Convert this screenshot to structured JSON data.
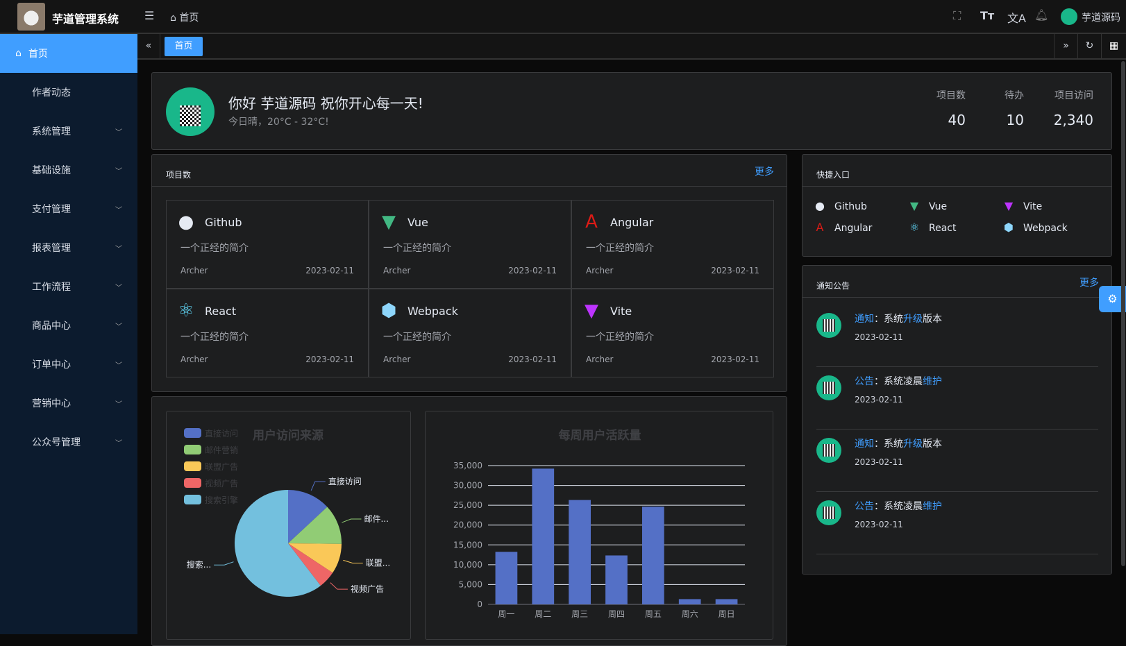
{
  "app": {
    "title": "芋道管理系统",
    "breadcrumb": "首页",
    "user": "芋道源码"
  },
  "header_icons": [
    "fullscreen-icon",
    "font-size-icon",
    "translate-icon",
    "bell-icon"
  ],
  "sidebar": {
    "items": [
      {
        "label": "首页",
        "active": true
      },
      {
        "label": "作者动态"
      },
      {
        "label": "系统管理",
        "expandable": true
      },
      {
        "label": "基础设施",
        "expandable": true
      },
      {
        "label": "支付管理",
        "expandable": true
      },
      {
        "label": "报表管理",
        "expandable": true
      },
      {
        "label": "工作流程",
        "expandable": true
      },
      {
        "label": "商品中心",
        "expandable": true
      },
      {
        "label": "订单中心",
        "expandable": true
      },
      {
        "label": "营销中心",
        "expandable": true
      },
      {
        "label": "公众号管理",
        "expandable": true
      }
    ]
  },
  "tabs": [
    {
      "label": "首页",
      "active": true
    }
  ],
  "welcome": {
    "greeting": "你好 芋道源码 祝你开心每一天!",
    "weather": "今日晴，20°C - 32°C!",
    "stats": [
      {
        "label": "项目数",
        "value": "40"
      },
      {
        "label": "待办",
        "value": "10"
      },
      {
        "label": "项目访问",
        "value": "2,340"
      }
    ]
  },
  "projects": {
    "title": "项目数",
    "more": "更多",
    "items": [
      {
        "name": "Github",
        "icon": "github-icon",
        "color": "#e5eaf3",
        "desc": "一个正经的简介",
        "author": "Archer",
        "date": "2023-02-11"
      },
      {
        "name": "Vue",
        "icon": "vue-icon",
        "color": "#42b883",
        "desc": "一个正经的简介",
        "author": "Archer",
        "date": "2023-02-11"
      },
      {
        "name": "Angular",
        "icon": "angular-icon",
        "color": "#dd1b16",
        "desc": "一个正经的简介",
        "author": "Archer",
        "date": "2023-02-11"
      },
      {
        "name": "React",
        "icon": "react-icon",
        "color": "#61dafb",
        "desc": "一个正经的简介",
        "author": "Archer",
        "date": "2023-02-11"
      },
      {
        "name": "Webpack",
        "icon": "webpack-icon",
        "color": "#8ed6fb",
        "desc": "一个正经的简介",
        "author": "Archer",
        "date": "2023-02-11"
      },
      {
        "name": "Vite",
        "icon": "vite-icon",
        "color": "#bd34fe",
        "desc": "一个正经的简介",
        "author": "Archer",
        "date": "2023-02-11"
      }
    ]
  },
  "quick": {
    "title": "快捷入口",
    "items": [
      {
        "name": "Github",
        "icon": "github-icon"
      },
      {
        "name": "Vue",
        "icon": "vue-icon"
      },
      {
        "name": "Vite",
        "icon": "vite-icon"
      },
      {
        "name": "Angular",
        "icon": "angular-icon"
      },
      {
        "name": "React",
        "icon": "react-icon"
      },
      {
        "name": "Webpack",
        "icon": "webpack-icon"
      }
    ]
  },
  "notices": {
    "title": "通知公告",
    "more": "更多",
    "items": [
      {
        "type": "通知",
        "pre": "系统",
        "hl": "升级",
        "post": "版本",
        "date": "2023-02-11"
      },
      {
        "type": "公告",
        "pre": "系统凌晨",
        "hl": "维护",
        "post": "",
        "date": "2023-02-11"
      },
      {
        "type": "通知",
        "pre": "系统",
        "hl": "升级",
        "post": "版本",
        "date": "2023-02-11"
      },
      {
        "type": "公告",
        "pre": "系统凌晨",
        "hl": "维护",
        "post": "",
        "date": "2023-02-11"
      }
    ]
  },
  "chart_data": [
    {
      "type": "pie",
      "title": "用户访问来源",
      "legend_position": "top-left",
      "categories": [
        "直接访问",
        "邮件营销",
        "联盟广告",
        "视频广告",
        "搜索引擎"
      ],
      "values": [
        335,
        310,
        234,
        135,
        1548
      ],
      "labels": [
        "直接访问",
        "邮件...",
        "联盟...",
        "视频广告",
        "搜索..."
      ],
      "colors": [
        "#5470c6",
        "#91cc75",
        "#fac858",
        "#ee6666",
        "#73c0de"
      ]
    },
    {
      "type": "bar",
      "title": "每周用户活跃量",
      "categories": [
        "周一",
        "周二",
        "周三",
        "周四",
        "周五",
        "周六",
        "周日"
      ],
      "values": [
        13253,
        34235,
        26321,
        12340,
        24643,
        1322,
        1324
      ],
      "ylim": [
        0,
        35000
      ],
      "yticks": [
        "0",
        "5,000",
        "10,000",
        "15,000",
        "20,000",
        "25,000",
        "30,000",
        "35,000"
      ],
      "grid": true,
      "color": "#5470c6"
    }
  ]
}
